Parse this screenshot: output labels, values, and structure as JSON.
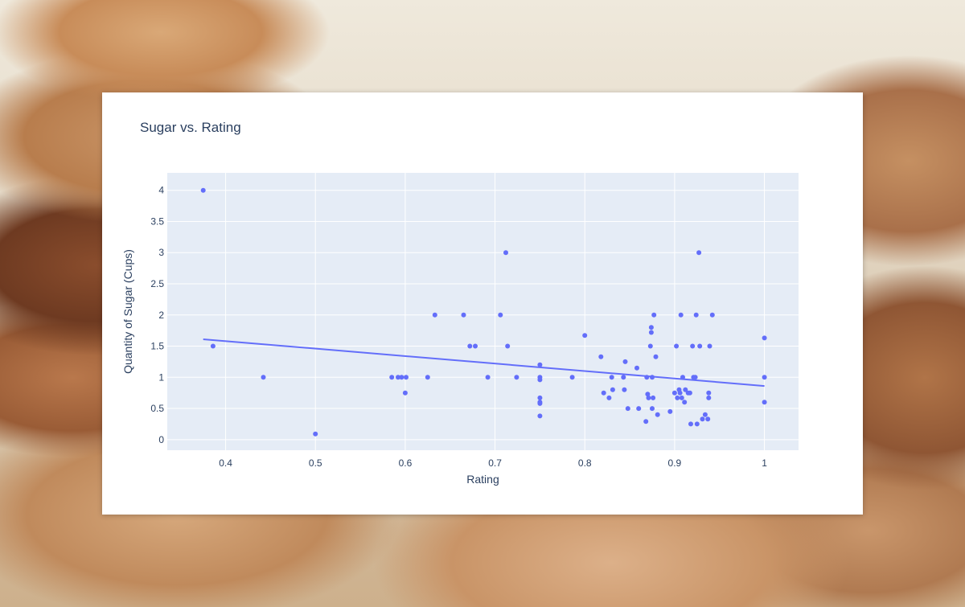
{
  "chart_data": {
    "type": "scatter",
    "title": "Sugar vs. Rating",
    "xlabel": "Rating",
    "ylabel": "Quantity of Sugar (Cups)",
    "xlim": [
      0.335,
      1.038
    ],
    "ylim": [
      -0.17,
      4.28
    ],
    "xticks": [
      0.4,
      0.5,
      0.6,
      0.7,
      0.8,
      0.9,
      1
    ],
    "xtick_labels": [
      "0.4",
      "0.5",
      "0.6",
      "0.7",
      "0.8",
      "0.9",
      "1"
    ],
    "yticks": [
      0,
      0.5,
      1,
      1.5,
      2,
      2.5,
      3,
      3.5,
      4
    ],
    "ytick_labels": [
      "0",
      "0.5",
      "1",
      "1.5",
      "2",
      "2.5",
      "3",
      "3.5",
      "4"
    ],
    "grid": true,
    "colors": {
      "marker": "#636efa",
      "plot_bg": "#e5ecf6",
      "grid": "#ffffff",
      "text": "#2a3f5f"
    },
    "series": [
      {
        "mode": "markers",
        "points": [
          [
            0.375,
            4.0
          ],
          [
            0.386,
            1.5
          ],
          [
            0.442,
            1.0
          ],
          [
            0.5,
            0.09
          ],
          [
            0.585,
            1.0
          ],
          [
            0.592,
            1.0
          ],
          [
            0.596,
            1.0
          ],
          [
            0.601,
            1.0
          ],
          [
            0.6,
            0.75
          ],
          [
            0.625,
            1.0
          ],
          [
            0.633,
            2.0
          ],
          [
            0.665,
            2.0
          ],
          [
            0.672,
            1.5
          ],
          [
            0.678,
            1.5
          ],
          [
            0.692,
            1.0
          ],
          [
            0.706,
            2.0
          ],
          [
            0.712,
            3.0
          ],
          [
            0.714,
            1.5
          ],
          [
            0.724,
            1.0
          ],
          [
            0.75,
            1.2
          ],
          [
            0.75,
            1.0
          ],
          [
            0.75,
            0.96
          ],
          [
            0.75,
            0.67
          ],
          [
            0.75,
            0.6
          ],
          [
            0.75,
            0.58
          ],
          [
            0.75,
            0.38
          ],
          [
            0.786,
            1.0
          ],
          [
            0.8,
            1.67
          ],
          [
            0.818,
            1.33
          ],
          [
            0.821,
            0.75
          ],
          [
            0.827,
            0.67
          ],
          [
            0.83,
            1.0
          ],
          [
            0.831,
            0.8
          ],
          [
            0.843,
            1.0
          ],
          [
            0.844,
            0.8
          ],
          [
            0.845,
            1.25
          ],
          [
            0.848,
            0.5
          ],
          [
            0.858,
            1.15
          ],
          [
            0.86,
            0.5
          ],
          [
            0.868,
            0.29
          ],
          [
            0.869,
            1.0
          ],
          [
            0.87,
            0.73
          ],
          [
            0.871,
            0.67
          ],
          [
            0.873,
            1.5
          ],
          [
            0.874,
            1.8
          ],
          [
            0.874,
            1.72
          ],
          [
            0.875,
            0.5
          ],
          [
            0.875,
            1.0
          ],
          [
            0.876,
            0.67
          ],
          [
            0.877,
            2.0
          ],
          [
            0.879,
            1.33
          ],
          [
            0.881,
            0.4
          ],
          [
            0.895,
            0.45
          ],
          [
            0.9,
            0.75
          ],
          [
            0.902,
            1.5
          ],
          [
            0.903,
            0.67
          ],
          [
            0.905,
            0.8
          ],
          [
            0.906,
            0.75
          ],
          [
            0.907,
            2.0
          ],
          [
            0.908,
            0.67
          ],
          [
            0.909,
            1.0
          ],
          [
            0.911,
            0.6
          ],
          [
            0.912,
            0.8
          ],
          [
            0.915,
            0.75
          ],
          [
            0.917,
            0.75
          ],
          [
            0.918,
            0.25
          ],
          [
            0.92,
            1.5
          ],
          [
            0.921,
            1.0
          ],
          [
            0.923,
            1.0
          ],
          [
            0.924,
            2.0
          ],
          [
            0.925,
            0.25
          ],
          [
            0.927,
            3.0
          ],
          [
            0.928,
            1.5
          ],
          [
            0.931,
            0.33
          ],
          [
            0.934,
            0.4
          ],
          [
            0.937,
            0.33
          ],
          [
            0.938,
            0.75
          ],
          [
            0.938,
            0.67
          ],
          [
            0.939,
            1.5
          ],
          [
            0.942,
            2.0
          ],
          [
            1.0,
            1.63
          ],
          [
            1.0,
            1.0
          ],
          [
            1.0,
            0.6
          ]
        ]
      },
      {
        "mode": "lines",
        "points": [
          [
            0.375,
            1.61
          ],
          [
            1.0,
            0.86
          ]
        ]
      }
    ]
  }
}
